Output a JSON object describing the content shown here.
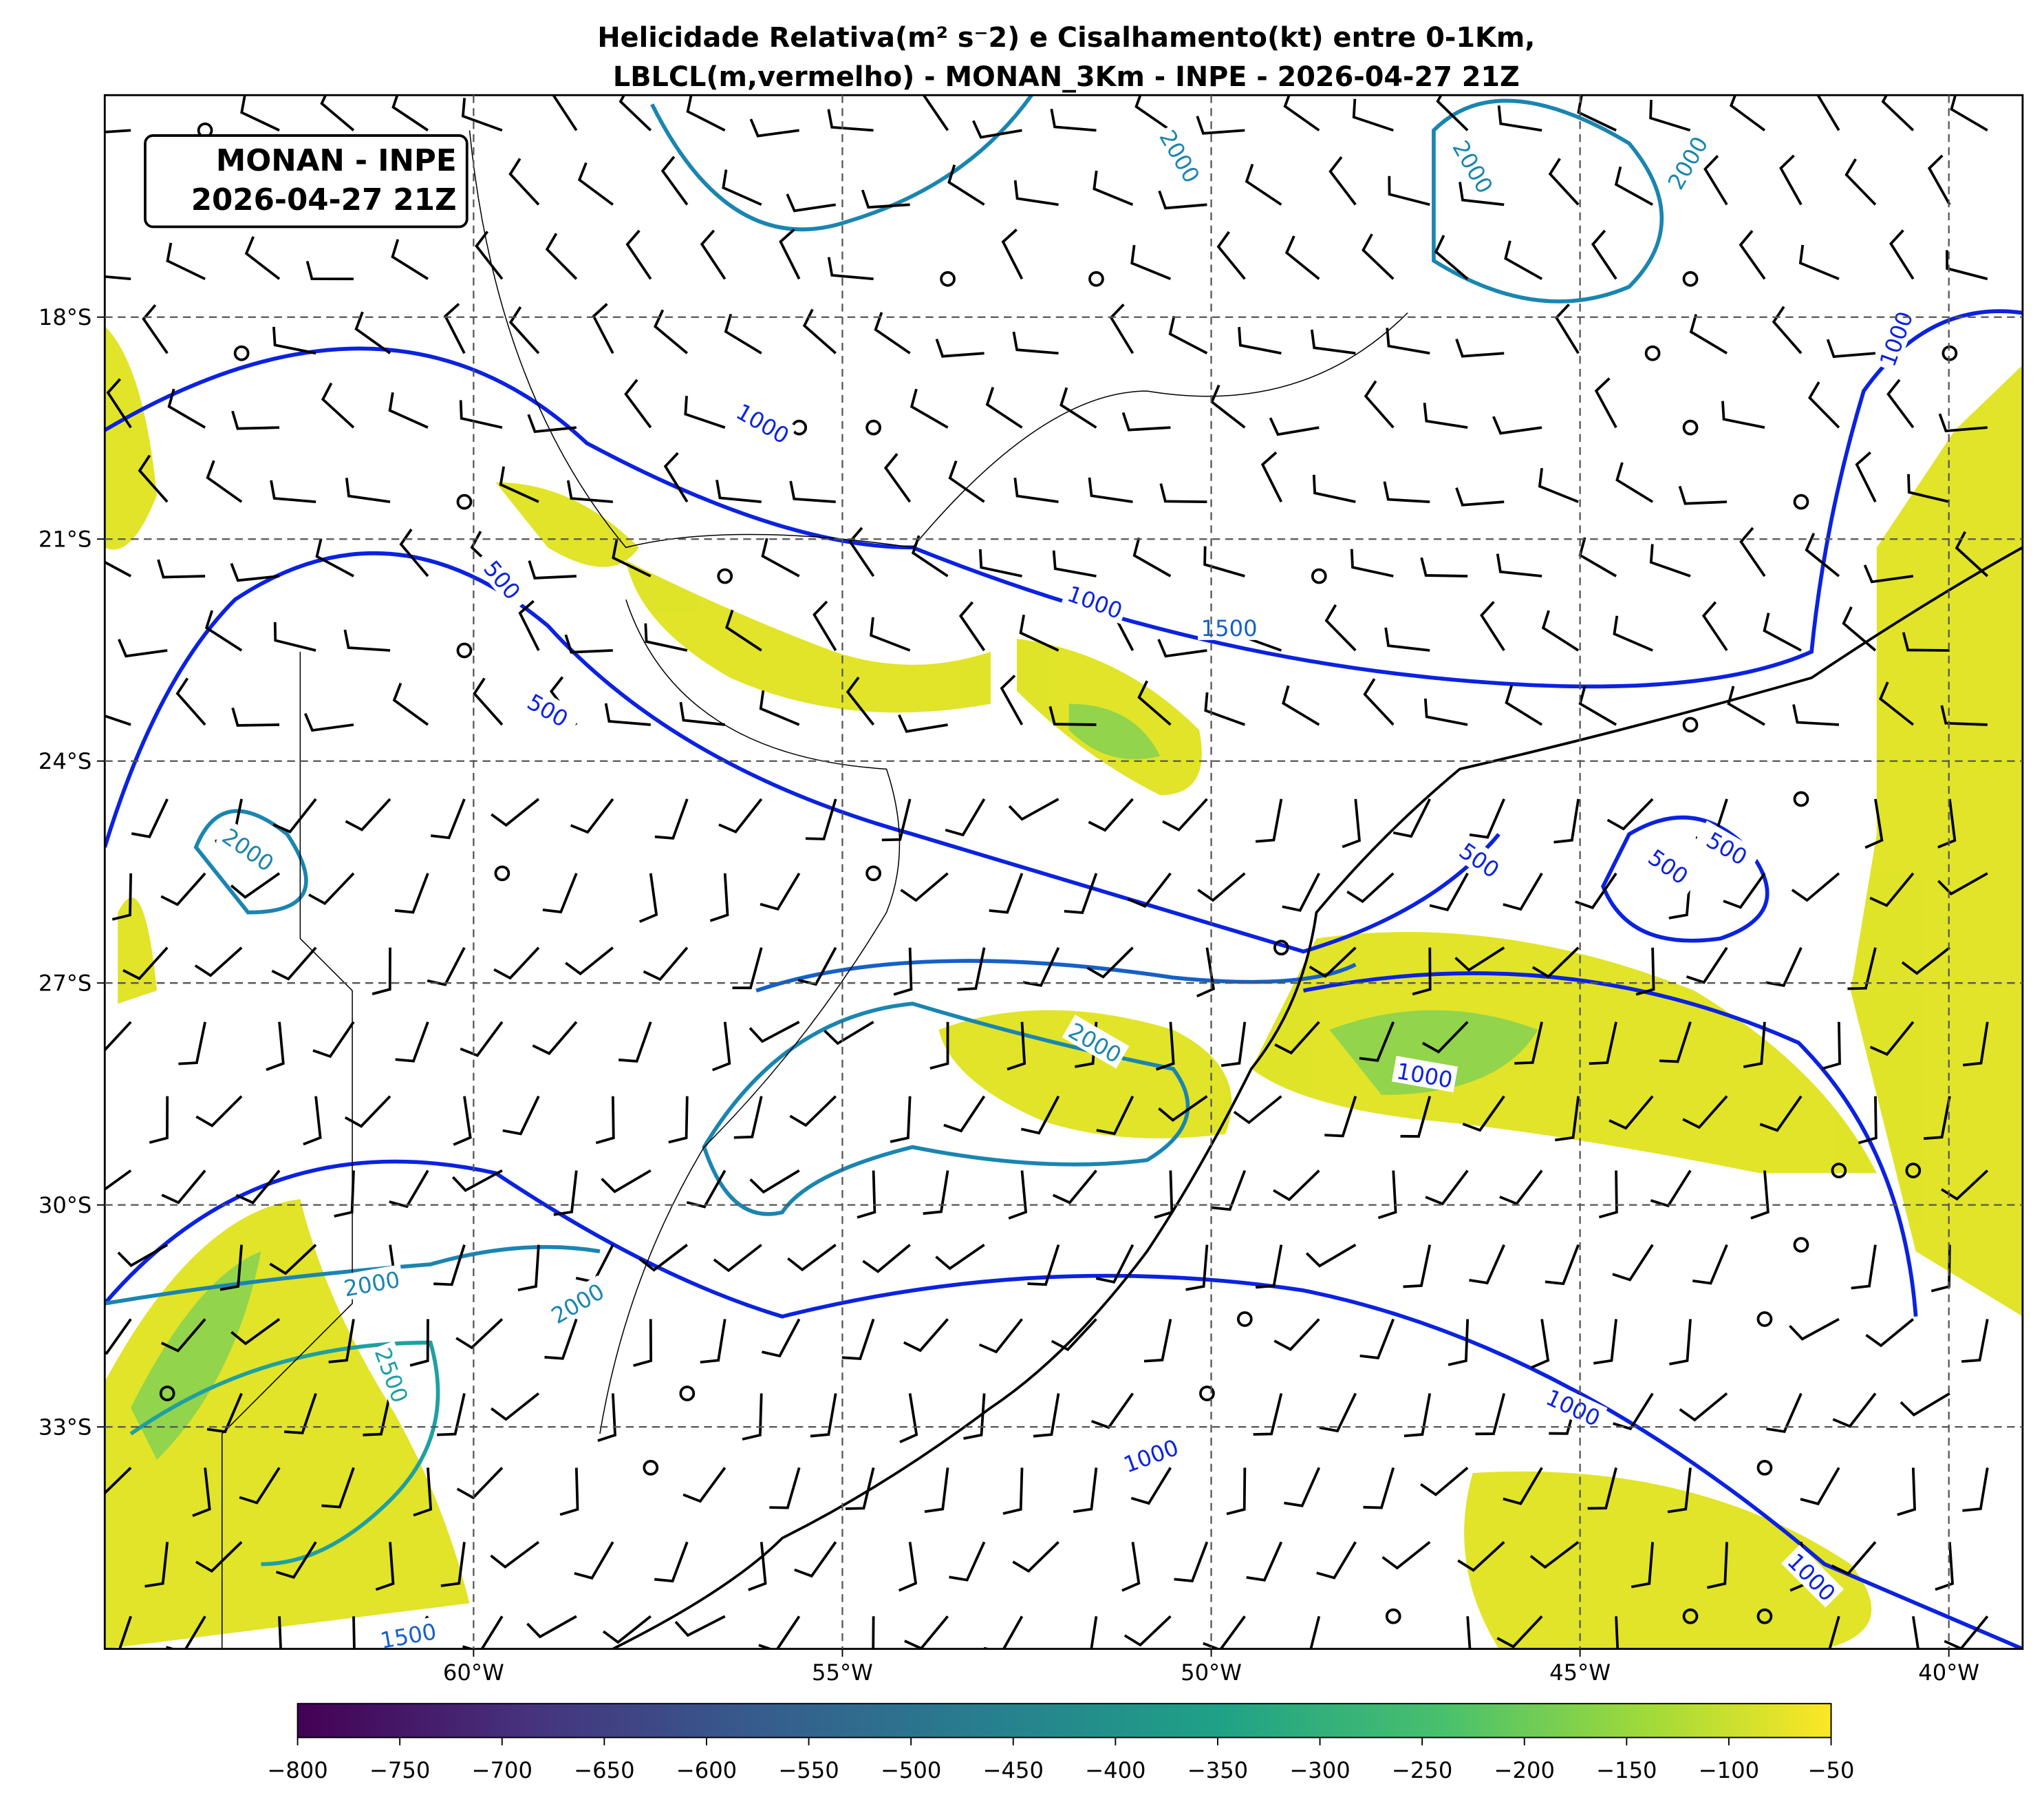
{
  "title": [
    "Helicidade Relativa(m² s⁻2) e Cisalhamento(kt) entre 0-1Km,",
    "LBLCL(m,vermelho) - MONAN_3Km - INPE - 2026-04-27 21Z"
  ],
  "info_box": [
    "MONAN - INPE",
    "2026-04-27 21Z"
  ],
  "map": {
    "xlim": [
      -65,
      -39
    ],
    "ylim": [
      -36,
      -15
    ],
    "grid": true,
    "xticks": [
      {
        "value": -60,
        "label": "60°W"
      },
      {
        "value": -55,
        "label": "55°W"
      },
      {
        "value": -50,
        "label": "50°W"
      },
      {
        "value": -45,
        "label": "45°W"
      },
      {
        "value": -40,
        "label": "40°W"
      }
    ],
    "yticks": [
      {
        "value": -18,
        "label": "18°S"
      },
      {
        "value": -21,
        "label": "21°S"
      },
      {
        "value": -24,
        "label": "24°S"
      },
      {
        "value": -27,
        "label": "27°S"
      },
      {
        "value": -30,
        "label": "30°S"
      },
      {
        "value": -33,
        "label": "33°S"
      }
    ]
  },
  "colorbar": {
    "lim": [
      -800,
      -50
    ],
    "ticks": [
      {
        "value": -800,
        "label": "−800"
      },
      {
        "value": -750,
        "label": "−750"
      },
      {
        "value": -700,
        "label": "−700"
      },
      {
        "value": -650,
        "label": "−650"
      },
      {
        "value": -600,
        "label": "−600"
      },
      {
        "value": -550,
        "label": "−550"
      },
      {
        "value": -500,
        "label": "−500"
      },
      {
        "value": -450,
        "label": "−450"
      },
      {
        "value": -400,
        "label": "−400"
      },
      {
        "value": -350,
        "label": "−350"
      },
      {
        "value": -300,
        "label": "−300"
      },
      {
        "value": -250,
        "label": "−250"
      },
      {
        "value": -200,
        "label": "−200"
      },
      {
        "value": -150,
        "label": "−150"
      },
      {
        "value": -100,
        "label": "−100"
      },
      {
        "value": -50,
        "label": "−50"
      }
    ]
  },
  "contour_labels": [
    2000,
    2000,
    2000,
    1000,
    1000,
    500,
    1000,
    1500,
    500,
    2000,
    500,
    500,
    500,
    2000,
    1000,
    2000,
    2000,
    2500,
    1000,
    1000,
    1000,
    1500
  ]
}
